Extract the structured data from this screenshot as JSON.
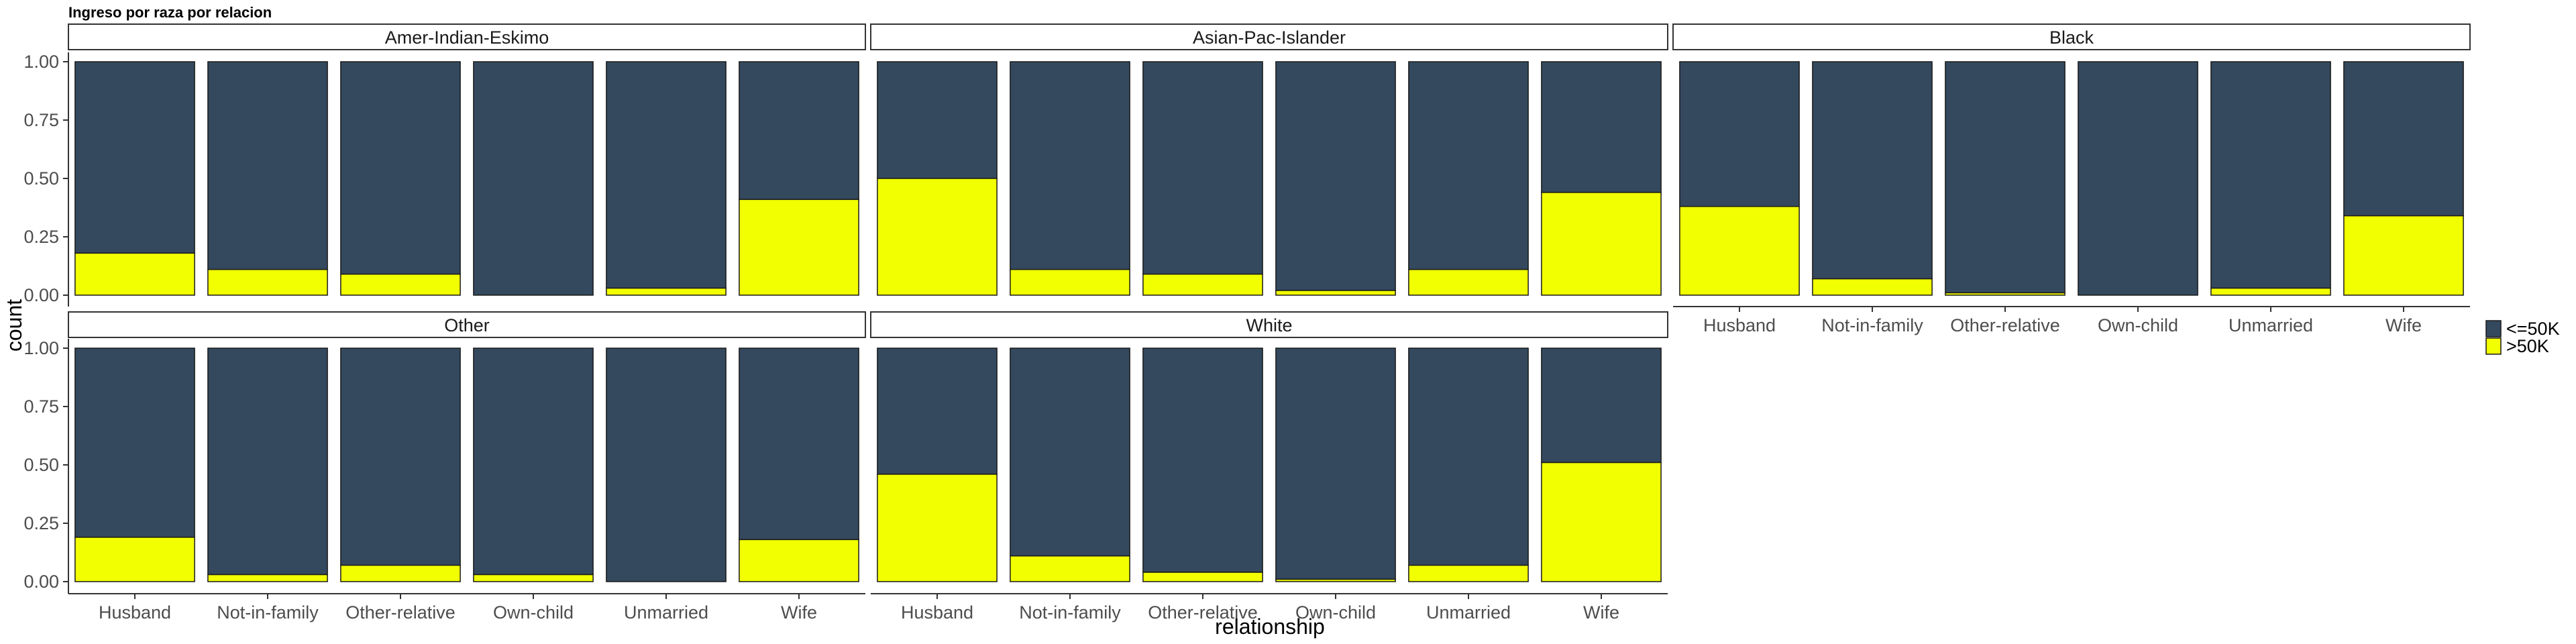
{
  "chart_data": {
    "type": "bar",
    "stacked": "fill",
    "title": "Ingreso por raza por relacion",
    "xlabel": "relationship",
    "ylabel": "count",
    "ylim": [
      0,
      1
    ],
    "yticks": [
      "0.00",
      "0.25",
      "0.50",
      "0.75",
      "1.00"
    ],
    "categories": [
      "Husband",
      "Not-in-family",
      "Other-relative",
      "Own-child",
      "Unmarried",
      "Wife"
    ],
    "legend": {
      "position": "right",
      "entries": [
        {
          "name": "<=50K",
          "color": "#34495e"
        },
        {
          "name": ">50K",
          "color": "#f2ff00"
        }
      ]
    },
    "facets": [
      {
        "name": "Amer-Indian-Eskimo",
        "above_50k": [
          0.18,
          0.11,
          0.09,
          0.0,
          0.03,
          0.41
        ]
      },
      {
        "name": "Asian-Pac-Islander",
        "above_50k": [
          0.5,
          0.11,
          0.09,
          0.02,
          0.11,
          0.44
        ]
      },
      {
        "name": "Black",
        "above_50k": [
          0.38,
          0.07,
          0.01,
          0.0,
          0.03,
          0.34
        ]
      },
      {
        "name": "Other",
        "above_50k": [
          0.19,
          0.03,
          0.07,
          0.03,
          0.0,
          0.18
        ]
      },
      {
        "name": "White",
        "above_50k": [
          0.46,
          0.11,
          0.04,
          0.01,
          0.07,
          0.51
        ]
      }
    ]
  }
}
